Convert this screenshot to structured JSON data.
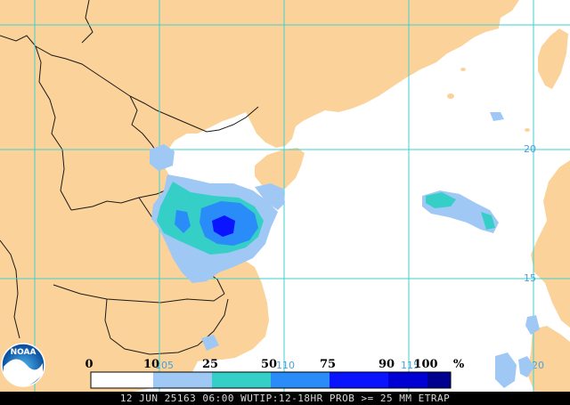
{
  "colors": {
    "land": "#fbd39a",
    "sea": "#ffffff",
    "grid": "#40d0d0",
    "border": "#1a1a1a",
    "grid_label": "#4aa0d8"
  },
  "grid": {
    "lat_labels": [
      "20",
      "15"
    ],
    "lon_labels": [
      "105",
      "110",
      "115",
      "120"
    ]
  },
  "legend": {
    "labels": [
      "0",
      "10",
      "25",
      "50",
      "75",
      "90",
      "100",
      "%"
    ],
    "colors": [
      "#ffffff",
      "#9fc8f5",
      "#36cfc8",
      "#2a8cf8",
      "#0a14ff",
      "#0000d4",
      "#000090"
    ]
  },
  "logo": {
    "text": "NOAA",
    "icon": "noaa-logo-icon"
  },
  "footer": {
    "text": "12 JUN 25163 06:00 WUTIP:12-18HR PROB >= 25 MM ETRAP"
  }
}
